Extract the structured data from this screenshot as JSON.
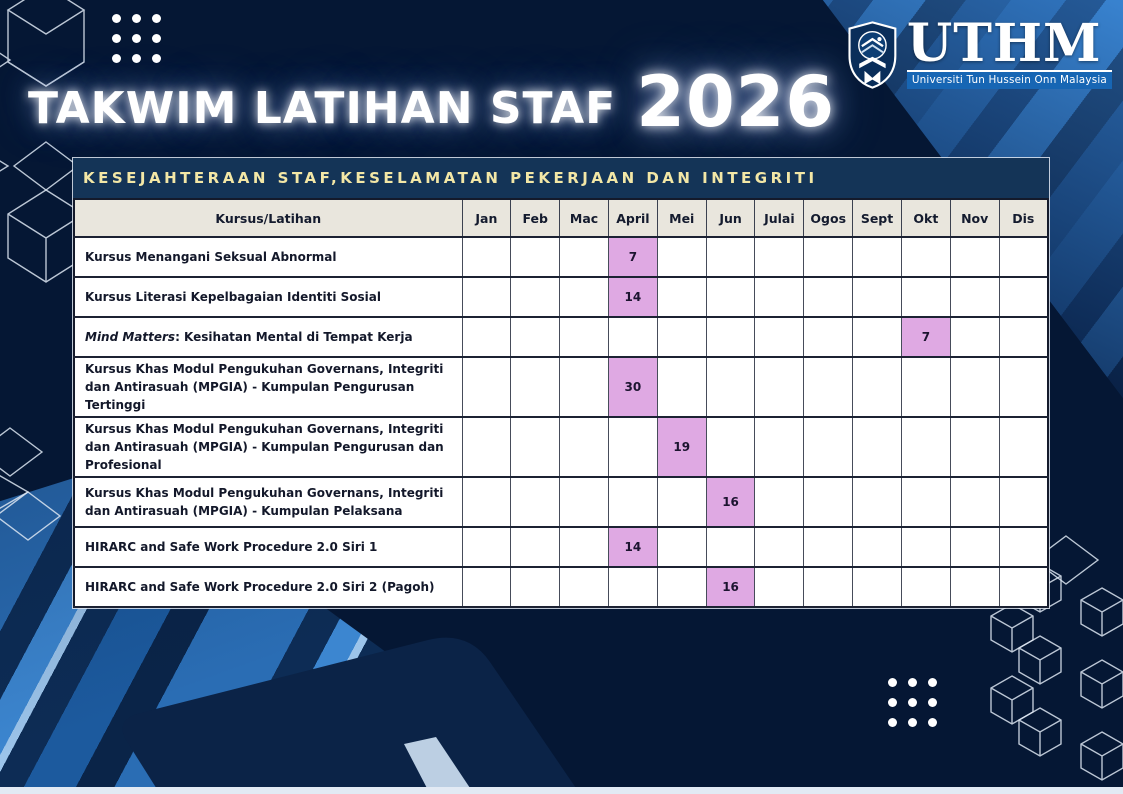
{
  "header": {
    "title": "TAKWIM LATIHAN STAF",
    "year": "2026"
  },
  "logo": {
    "acronym": "UTHM",
    "full_name": "Universiti Tun Hussein Onn Malaysia"
  },
  "section_banner": {
    "text": "KESEJAHTERAAN STAF,KESELAMATAN PEKERJAAN DAN INTEGRITI"
  },
  "calendar": {
    "course_column_header": "Kursus/Latihan",
    "months": [
      "Jan",
      "Feb",
      "Mac",
      "April",
      "Mei",
      "Jun",
      "Julai",
      "Ogos",
      "Sept",
      "Okt",
      "Nov",
      "Dis"
    ],
    "highlight_color": "#dfa9e3",
    "rows": [
      {
        "course_italic": "",
        "course": "Kursus Menangani Seksual Abnormal",
        "tall": false,
        "entries": {
          "April": "7"
        }
      },
      {
        "course_italic": "",
        "course": "Kursus Literasi Kepelbagaian Identiti Sosial",
        "tall": false,
        "entries": {
          "April": "14"
        }
      },
      {
        "course_italic": "Mind Matters",
        "course": ": Kesihatan Mental di Tempat Kerja",
        "tall": false,
        "entries": {
          "Okt": "7"
        }
      },
      {
        "course_italic": "",
        "course": "Kursus Khas Modul Pengukuhan Governans, Integriti dan Antirasuah (MPGIA) - Kumpulan Pengurusan Tertinggi",
        "tall": true,
        "entries": {
          "April": "30"
        }
      },
      {
        "course_italic": "",
        "course": "Kursus Khas Modul Pengukuhan Governans, Integriti dan Antirasuah (MPGIA) - Kumpulan Pengurusan dan Profesional",
        "tall": true,
        "entries": {
          "Mei": "19"
        }
      },
      {
        "course_italic": "",
        "course": "Kursus Khas Modul Pengukuhan Governans, Integriti dan Antirasuah (MPGIA) - Kumpulan Pelaksana",
        "tall": true,
        "entries": {
          "Jun": "16"
        }
      },
      {
        "course_italic": "",
        "course": "HIRARC and Safe Work Procedure 2.0 Siri 1",
        "tall": false,
        "entries": {
          "April": "14"
        }
      },
      {
        "course_italic": "",
        "course": "HIRARC and Safe Work Procedure 2.0 Siri 2 (Pagoh)",
        "tall": false,
        "entries": {
          "Jun": "16"
        }
      }
    ]
  },
  "colors": {
    "page_background": "#051734",
    "banner_background": "#143457",
    "banner_text": "#f3e7a6",
    "table_header_background": "#e9e6dd",
    "highlight_cell": "#dfa9e3",
    "accent_blue": "#2a74c4",
    "bottom_bar": "#e2eaf4"
  }
}
